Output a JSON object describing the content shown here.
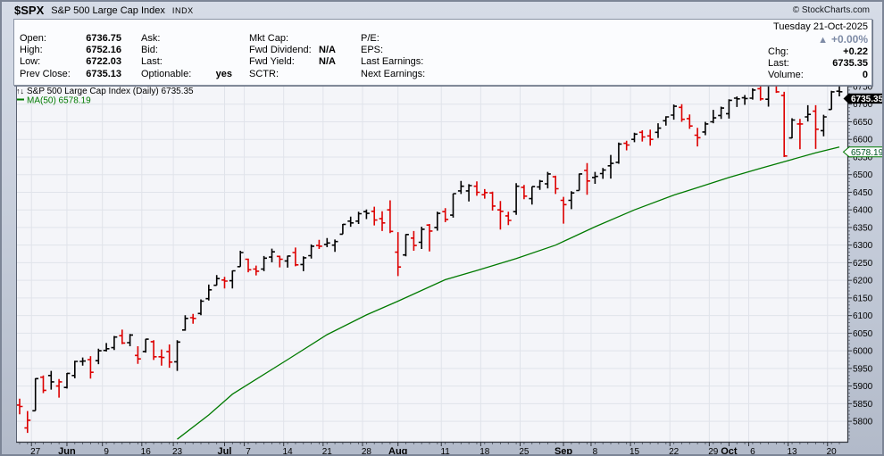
{
  "titlebar": {
    "symbol": "$SPX",
    "name": "S&P 500 Large Cap Index",
    "exchange": "INDX",
    "copyright": "© StockCharts.com"
  },
  "info_panel": {
    "col1": [
      {
        "label": "Open:",
        "value": "6736.75"
      },
      {
        "label": "High:",
        "value": "6752.16"
      },
      {
        "label": "Low:",
        "value": "6722.03"
      },
      {
        "label": "Prev Close:",
        "value": "6735.13"
      }
    ],
    "col2": [
      {
        "label": "Ask:",
        "value": ""
      },
      {
        "label": "Bid:",
        "value": ""
      },
      {
        "label": "Last:",
        "value": ""
      },
      {
        "label": "Optionable:",
        "value": "yes"
      }
    ],
    "col3": [
      {
        "label": "Mkt Cap:",
        "value": ""
      },
      {
        "label": "Fwd Dividend:",
        "value": "N/A"
      },
      {
        "label": "Fwd Yield:",
        "value": "N/A"
      },
      {
        "label": "SCTR:",
        "value": ""
      }
    ],
    "col4": [
      {
        "label": "P/E:",
        "value": ""
      },
      {
        "label": "EPS:",
        "value": ""
      },
      {
        "label": "Last Earnings:",
        "value": ""
      },
      {
        "label": "Next Earnings:",
        "value": ""
      }
    ]
  },
  "summary": {
    "date": "Tuesday 21-Oct-2025",
    "direction_icon": "▲",
    "percent_change": "+0.00%",
    "rows": [
      {
        "label": "Chg:",
        "value": "+0.22"
      },
      {
        "label": "Last:",
        "value": "6735.35"
      },
      {
        "label": "Volume:",
        "value": "0"
      }
    ]
  },
  "chart_data": {
    "type": "ohlc",
    "legend_icon": "↑↓",
    "legend_title": "S&P 500 Large Cap Index (Daily) 6735.35",
    "ma_legend": "MA(50) 6578.19",
    "last_price": 6735.35,
    "last_price_tag": "6735.35",
    "ma_value": 6578.19,
    "ma_tag": "6578.19",
    "colors": {
      "up": "#000000",
      "down": "#dd0000",
      "ma": "#007a00",
      "grid": "#e0e3ea",
      "plot_bg": "#f4f5f9",
      "axis": "#30343c",
      "tag_last_bg": "#000000",
      "tag_last_text": "#ffffff",
      "tag_ma_border": "#007a00"
    },
    "y_axis": {
      "top_price": 6750,
      "bottom_price": 5742,
      "label_min": 5800,
      "label_max": 6750,
      "step": 50,
      "minor_tick_step": 10
    },
    "x_labels": [
      [
        "27",
        2,
        0
      ],
      [
        "Jun",
        6,
        1
      ],
      [
        "9",
        11,
        0
      ],
      [
        "16",
        16,
        0
      ],
      [
        "23",
        20,
        0
      ],
      [
        "Jul",
        26,
        1
      ],
      [
        "7",
        29,
        0
      ],
      [
        "14",
        34,
        0
      ],
      [
        "21",
        39,
        0
      ],
      [
        "28",
        44,
        0
      ],
      [
        "Aug",
        48,
        1
      ],
      [
        "11",
        54,
        0
      ],
      [
        "18",
        59,
        0
      ],
      [
        "25",
        64,
        0
      ],
      [
        "Sep",
        69,
        1
      ],
      [
        "8",
        73,
        0
      ],
      [
        "15",
        78,
        0
      ],
      [
        "22",
        83,
        0
      ],
      [
        "29",
        88,
        0
      ],
      [
        "Oct",
        90,
        1
      ],
      [
        "6",
        93,
        0
      ],
      [
        "13",
        98,
        0
      ],
      [
        "20",
        103,
        0
      ]
    ],
    "bars": [
      [
        "May 22",
        5846,
        5864,
        5820,
        5842,
        1
      ],
      [
        "May 23",
        5781,
        5829,
        5767,
        5803,
        1
      ],
      [
        "May 27",
        5830,
        5922,
        5830,
        5921,
        0
      ],
      [
        "May 28",
        5925,
        5930,
        5880,
        5888,
        1
      ],
      [
        "May 29",
        5930,
        5943,
        5890,
        5912,
        0
      ],
      [
        "May 30",
        5900,
        5920,
        5867,
        5912,
        1
      ],
      [
        "Jun 2",
        5896,
        5937,
        5893,
        5936,
        0
      ],
      [
        "Jun 3",
        5930,
        5972,
        5922,
        5970,
        0
      ],
      [
        "Jun 4",
        5970,
        5981,
        5958,
        5971,
        0
      ],
      [
        "Jun 5",
        5975,
        5985,
        5921,
        5939,
        1
      ],
      [
        "Jun 6",
        5972,
        6006,
        5962,
        6000,
        0
      ],
      [
        "Jun 9",
        6001,
        6022,
        5998,
        6006,
        0
      ],
      [
        "Jun 10",
        6009,
        6042,
        6002,
        6039,
        0
      ],
      [
        "Jun 11",
        6043,
        6060,
        6019,
        6022,
        1
      ],
      [
        "Jun 12",
        6023,
        6048,
        6013,
        6045,
        0
      ],
      [
        "Jun 13",
        5987,
        6013,
        5963,
        5977,
        1
      ],
      [
        "Jun 16",
        5998,
        6034,
        5995,
        6033,
        0
      ],
      [
        "Jun 17",
        6026,
        6030,
        5974,
        5983,
        1
      ],
      [
        "Jun 18",
        5983,
        6004,
        5958,
        5981,
        1
      ],
      [
        "Jun 20",
        5998,
        6018,
        5952,
        5968,
        1
      ],
      [
        "Jun 23",
        5969,
        6030,
        5943,
        6025,
        0
      ],
      [
        "Jun 24",
        6059,
        6101,
        6057,
        6092,
        0
      ],
      [
        "Jun 25",
        6094,
        6105,
        6077,
        6092,
        1
      ],
      [
        "Jun 26",
        6106,
        6146,
        6101,
        6141,
        0
      ],
      [
        "Jun 27",
        6148,
        6188,
        6143,
        6173,
        0
      ],
      [
        "Jun 30",
        6186,
        6215,
        6186,
        6205,
        0
      ],
      [
        "Jul 1",
        6201,
        6210,
        6177,
        6198,
        1
      ],
      [
        "Jul 2",
        6199,
        6228,
        6177,
        6227,
        0
      ],
      [
        "Jul 3",
        6239,
        6284,
        6239,
        6279,
        0
      ],
      [
        "Jul 7",
        6260,
        6262,
        6223,
        6230,
        1
      ],
      [
        "Jul 8",
        6232,
        6242,
        6214,
        6226,
        1
      ],
      [
        "Jul 9",
        6232,
        6269,
        6226,
        6263,
        0
      ],
      [
        "Jul 10",
        6266,
        6290,
        6251,
        6281,
        0
      ],
      [
        "Jul 11",
        6268,
        6270,
        6237,
        6260,
        1
      ],
      [
        "Jul 14",
        6255,
        6270,
        6236,
        6269,
        0
      ],
      [
        "Jul 15",
        6279,
        6293,
        6240,
        6244,
        1
      ],
      [
        "Jul 16",
        6245,
        6268,
        6226,
        6264,
        0
      ],
      [
        "Jul 17",
        6270,
        6302,
        6262,
        6297,
        0
      ],
      [
        "Jul 18",
        6299,
        6315,
        6289,
        6297,
        1
      ],
      [
        "Jul 21",
        6302,
        6320,
        6294,
        6306,
        0
      ],
      [
        "Jul 22",
        6300,
        6316,
        6281,
        6310,
        0
      ],
      [
        "Jul 23",
        6331,
        6360,
        6331,
        6359,
        0
      ],
      [
        "Jul 24",
        6368,
        6381,
        6352,
        6363,
        0
      ],
      [
        "Jul 25",
        6368,
        6395,
        6360,
        6389,
        0
      ],
      [
        "Jul 28",
        6395,
        6401,
        6374,
        6390,
        0
      ],
      [
        "Jul 29",
        6396,
        6409,
        6356,
        6371,
        1
      ],
      [
        "Jul 30",
        6375,
        6396,
        6340,
        6363,
        1
      ],
      [
        "Jul 31",
        6400,
        6427,
        6334,
        6339,
        1
      ],
      [
        "Aug 1",
        6280,
        6337,
        6212,
        6238,
        1
      ],
      [
        "Aug 4",
        6272,
        6331,
        6268,
        6330,
        0
      ],
      [
        "Aug 5",
        6320,
        6340,
        6284,
        6299,
        1
      ],
      [
        "Aug 6",
        6308,
        6352,
        6289,
        6345,
        0
      ],
      [
        "Aug 7",
        6357,
        6360,
        6282,
        6340,
        1
      ],
      [
        "Aug 8",
        6350,
        6395,
        6341,
        6390,
        0
      ],
      [
        "Aug 11",
        6395,
        6405,
        6365,
        6373,
        1
      ],
      [
        "Aug 12",
        6385,
        6446,
        6378,
        6446,
        0
      ],
      [
        "Aug 13",
        6454,
        6482,
        6445,
        6467,
        0
      ],
      [
        "Aug 14",
        6454,
        6473,
        6424,
        6469,
        0
      ],
      [
        "Aug 15",
        6467,
        6481,
        6440,
        6450,
        1
      ],
      [
        "Aug 18",
        6443,
        6459,
        6432,
        6449,
        1
      ],
      [
        "Aug 19",
        6448,
        6452,
        6398,
        6411,
        1
      ],
      [
        "Aug 20",
        6400,
        6425,
        6344,
        6396,
        1
      ],
      [
        "Aug 21",
        6383,
        6395,
        6357,
        6370,
        1
      ],
      [
        "Aug 22",
        6395,
        6476,
        6386,
        6467,
        0
      ],
      [
        "Aug 25",
        6464,
        6471,
        6430,
        6439,
        1
      ],
      [
        "Aug 26",
        6432,
        6466,
        6415,
        6466,
        0
      ],
      [
        "Aug 27",
        6465,
        6485,
        6457,
        6481,
        0
      ],
      [
        "Aug 28",
        6474,
        6508,
        6461,
        6502,
        0
      ],
      [
        "Aug 29",
        6494,
        6497,
        6445,
        6460,
        1
      ],
      [
        "Sep 2",
        6427,
        6437,
        6361,
        6415,
        1
      ],
      [
        "Sep 3",
        6427,
        6453,
        6402,
        6448,
        0
      ],
      [
        "Sep 4",
        6455,
        6503,
        6455,
        6502,
        0
      ],
      [
        "Sep 5",
        6512,
        6533,
        6443,
        6482,
        1
      ],
      [
        "Sep 8",
        6492,
        6508,
        6474,
        6495,
        0
      ],
      [
        "Sep 9",
        6503,
        6519,
        6488,
        6513,
        0
      ],
      [
        "Sep 10",
        6525,
        6556,
        6489,
        6532,
        0
      ],
      [
        "Sep 11",
        6535,
        6591,
        6531,
        6587,
        0
      ],
      [
        "Sep 12",
        6589,
        6596,
        6569,
        6584,
        1
      ],
      [
        "Sep 15",
        6600,
        6619,
        6592,
        6615,
        0
      ],
      [
        "Sep 16",
        6620,
        6626,
        6594,
        6607,
        1
      ],
      [
        "Sep 17",
        6610,
        6628,
        6582,
        6600,
        1
      ],
      [
        "Sep 18",
        6620,
        6646,
        6604,
        6632,
        0
      ],
      [
        "Sep 19",
        6653,
        6666,
        6639,
        6664,
        0
      ],
      [
        "Sep 22",
        6669,
        6699,
        6656,
        6694,
        0
      ],
      [
        "Sep 23",
        6691,
        6700,
        6650,
        6657,
        1
      ],
      [
        "Sep 24",
        6659,
        6671,
        6630,
        6638,
        1
      ],
      [
        "Sep 25",
        6612,
        6633,
        6580,
        6605,
        1
      ],
      [
        "Sep 26",
        6621,
        6650,
        6612,
        6644,
        0
      ],
      [
        "Sep 29",
        6650,
        6684,
        6646,
        6661,
        0
      ],
      [
        "Sep 30",
        6668,
        6693,
        6658,
        6689,
        0
      ],
      [
        "Oct 1",
        6673,
        6714,
        6659,
        6711,
        0
      ],
      [
        "Oct 2",
        6717,
        6722,
        6692,
        6715,
        0
      ],
      [
        "Oct 3",
        6718,
        6726,
        6698,
        6716,
        0
      ],
      [
        "Oct 6",
        6717,
        6745,
        6713,
        6740,
        0
      ],
      [
        "Oct 7",
        6744,
        6754,
        6710,
        6715,
        1
      ],
      [
        "Oct 8",
        6714,
        6755,
        6693,
        6754,
        0
      ],
      [
        "Oct 9",
        6752,
        6756,
        6732,
        6735,
        1
      ],
      [
        "Oct 10",
        6725,
        6735,
        6550,
        6553,
        1
      ],
      [
        "Oct 13",
        6604,
        6660,
        6603,
        6655,
        0
      ],
      [
        "Oct 14",
        6644,
        6658,
        6572,
        6644,
        1
      ],
      [
        "Oct 15",
        6664,
        6697,
        6651,
        6671,
        0
      ],
      [
        "Oct 16",
        6680,
        6697,
        6573,
        6629,
        1
      ],
      [
        "Oct 17",
        6625,
        6670,
        6609,
        6664,
        0
      ],
      [
        "Oct 20",
        6685,
        6738,
        6685,
        6735,
        0
      ],
      [
        "Oct 21",
        6736.75,
        6752.16,
        6722.03,
        6735.35,
        0
      ]
    ],
    "ma50_points": [
      [
        20,
        5749
      ],
      [
        24,
        5818
      ],
      [
        27,
        5877
      ],
      [
        29,
        5905
      ],
      [
        34,
        5975
      ],
      [
        39,
        6046
      ],
      [
        44,
        6102
      ],
      [
        48,
        6141
      ],
      [
        54,
        6202
      ],
      [
        58,
        6228
      ],
      [
        63,
        6262
      ],
      [
        68,
        6300
      ],
      [
        73,
        6352
      ],
      [
        78,
        6400
      ],
      [
        83,
        6442
      ],
      [
        86,
        6463
      ],
      [
        90,
        6492
      ],
      [
        94,
        6518
      ],
      [
        98,
        6543
      ],
      [
        101,
        6562
      ],
      [
        104,
        6578.19
      ]
    ]
  }
}
